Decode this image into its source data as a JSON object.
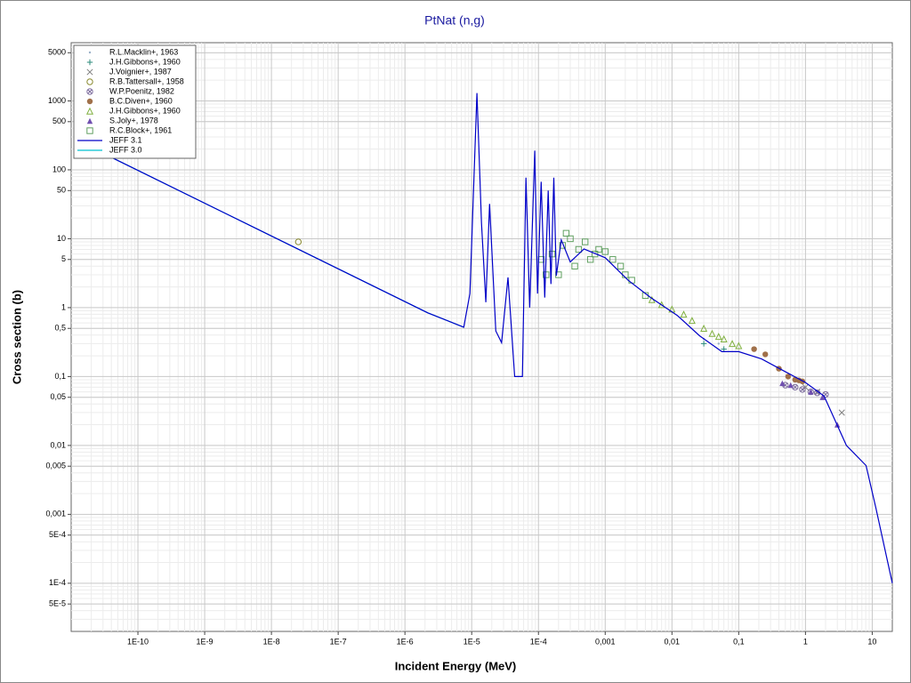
{
  "chart_data": {
    "type": "scatter",
    "title": "PtNat (n,g)",
    "x_label": "Incident Energy (MeV)",
    "y_label": "Cross section (b)",
    "log_x": true,
    "log_y": true,
    "grid": true,
    "minor_grid": true,
    "legend": "upper left",
    "xlim": [
      1e-11,
      20
    ],
    "ylim": [
      2e-05,
      7000
    ],
    "xticks": [
      {
        "value": 1e-10,
        "label": "1E-10"
      },
      {
        "value": 1e-09,
        "label": "1E-9"
      },
      {
        "value": 1e-08,
        "label": "1E-8"
      },
      {
        "value": 1e-07,
        "label": "1E-7"
      },
      {
        "value": 1e-06,
        "label": "1E-6"
      },
      {
        "value": 1e-05,
        "label": "1E-5"
      },
      {
        "value": 0.0001,
        "label": "1E-4"
      },
      {
        "value": 0.001,
        "label": "0,001"
      },
      {
        "value": 0.01,
        "label": "0,01"
      },
      {
        "value": 0.1,
        "label": "0,1"
      },
      1,
      10
    ],
    "yticks": [
      5000,
      1000,
      500,
      100,
      50,
      10,
      5,
      1,
      {
        "value": 0.5,
        "label": "0,5"
      },
      {
        "value": 0.1,
        "label": "0,1"
      },
      {
        "value": 0.05,
        "label": "0,05"
      },
      {
        "value": 0.01,
        "label": "0,01"
      },
      {
        "value": 0.005,
        "label": "0,005"
      },
      {
        "value": 0.001,
        "label": "0,001"
      },
      {
        "value": 0.0005,
        "label": "5E-4"
      },
      {
        "value": 0.0001,
        "label": "1E-4"
      },
      {
        "value": 5e-05,
        "label": "5E-5"
      }
    ],
    "series": [
      {
        "name": "R.L.Macklin+, 1963",
        "marker": "dot",
        "color": "#9ab0c8",
        "x": [
          0.03,
          0.05
        ],
        "y": [
          0.35,
          0.3
        ]
      },
      {
        "name": "J.H.Gibbons+, 1960",
        "marker": "plus",
        "color": "#2a8a7a",
        "x": [
          0.03,
          0.06
        ],
        "y": [
          0.3,
          0.25
        ]
      },
      {
        "name": "J.Voignier+, 1987",
        "marker": "cross",
        "color": "#808080",
        "x": [
          1,
          1.5,
          3.5
        ],
        "y": [
          0.07,
          0.06,
          0.03
        ]
      },
      {
        "name": "R.B.Tattersall+, 1958",
        "marker": "circle",
        "color": "#8a8a30",
        "x": [
          2.53e-08
        ],
        "y": [
          9
        ]
      },
      {
        "name": "W.P.Poenitz, 1982",
        "marker": "circlex",
        "color": "#8070a0",
        "x": [
          0.5,
          0.7,
          0.9,
          1.2,
          1.5,
          2
        ],
        "y": [
          0.075,
          0.07,
          0.065,
          0.06,
          0.058,
          0.055
        ]
      },
      {
        "name": "B.C.Diven+, 1960",
        "marker": "disc",
        "color": "#a0704a",
        "x": [
          0.17,
          0.25,
          0.4,
          0.55,
          0.7,
          0.8,
          0.9
        ],
        "y": [
          0.25,
          0.21,
          0.13,
          0.1,
          0.09,
          0.088,
          0.085
        ]
      },
      {
        "name": "J.H.Gibbons+, 1960",
        "marker": "triangle",
        "color": "#80b040",
        "x": [
          0.005,
          0.007,
          0.01,
          0.015,
          0.02,
          0.03,
          0.04,
          0.05,
          0.06,
          0.08,
          0.1
        ],
        "y": [
          1.3,
          1.1,
          0.95,
          0.8,
          0.65,
          0.5,
          0.42,
          0.38,
          0.35,
          0.3,
          0.28
        ]
      },
      {
        "name": "S.Joly+, 1978",
        "marker": "filltriangle",
        "color": "#7050b0",
        "x": [
          0.45,
          0.6,
          1.2,
          1.8,
          3
        ],
        "y": [
          0.08,
          0.075,
          0.06,
          0.05,
          0.02
        ]
      },
      {
        "name": "R.C.Block+, 1961",
        "marker": "square",
        "color": "#60a060",
        "x": [
          0.00011,
          0.00013,
          0.00016,
          0.0002,
          0.00023,
          0.00026,
          0.0003,
          0.00035,
          0.0004,
          0.0005,
          0.0006,
          0.0007,
          0.0008,
          0.001,
          0.0013,
          0.0017,
          0.002,
          0.0025,
          0.004
        ],
        "y": [
          5,
          3,
          6,
          3,
          8,
          12,
          10,
          4,
          7,
          9,
          5,
          6,
          7,
          6.5,
          5,
          4,
          3,
          2.5,
          1.5
        ]
      },
      {
        "name": "JEFF 3.1",
        "marker": "line",
        "color": "#0000c8",
        "x": [
          2.5e-11,
          2.2e-06,
          7.6e-06,
          9.4e-06,
          1.2e-05,
          1.4e-05,
          1.63e-05,
          1.85e-05,
          2.3e-05,
          2.8e-05,
          3.5e-05,
          4.4e-05,
          5.75e-05,
          6.5e-05,
          7.4e-05,
          8.8e-05,
          9.7e-05,
          0.00011,
          0.000124,
          0.00014,
          0.000154,
          0.00017,
          0.000185,
          0.00022,
          0.0003,
          0.00048,
          0.001,
          0.0022,
          0.0048,
          0.012,
          0.026,
          0.056,
          0.1,
          0.22,
          0.48,
          1,
          1.9,
          4.1,
          8.1,
          11.3,
          20
        ],
        "y": [
          190,
          0.84,
          0.52,
          1.6,
          1300,
          17,
          1.2,
          32,
          0.46,
          0.31,
          2.75,
          0.1,
          0.1,
          77,
          1,
          190,
          1.6,
          67,
          1.4,
          50,
          2.2,
          77,
          2.9,
          9.6,
          4.6,
          7.1,
          5.3,
          2.5,
          1.4,
          0.77,
          0.39,
          0.23,
          0.23,
          0.18,
          0.12,
          0.082,
          0.052,
          0.01,
          0.0051,
          0.00126,
          0.0001
        ]
      },
      {
        "name": "JEFF 3.0",
        "marker": "line",
        "color": "#00c0d0",
        "x": [
          2.5e-11,
          2.2e-06,
          7.6e-06
        ],
        "y": [
          190,
          0.84,
          0.52
        ]
      }
    ]
  }
}
